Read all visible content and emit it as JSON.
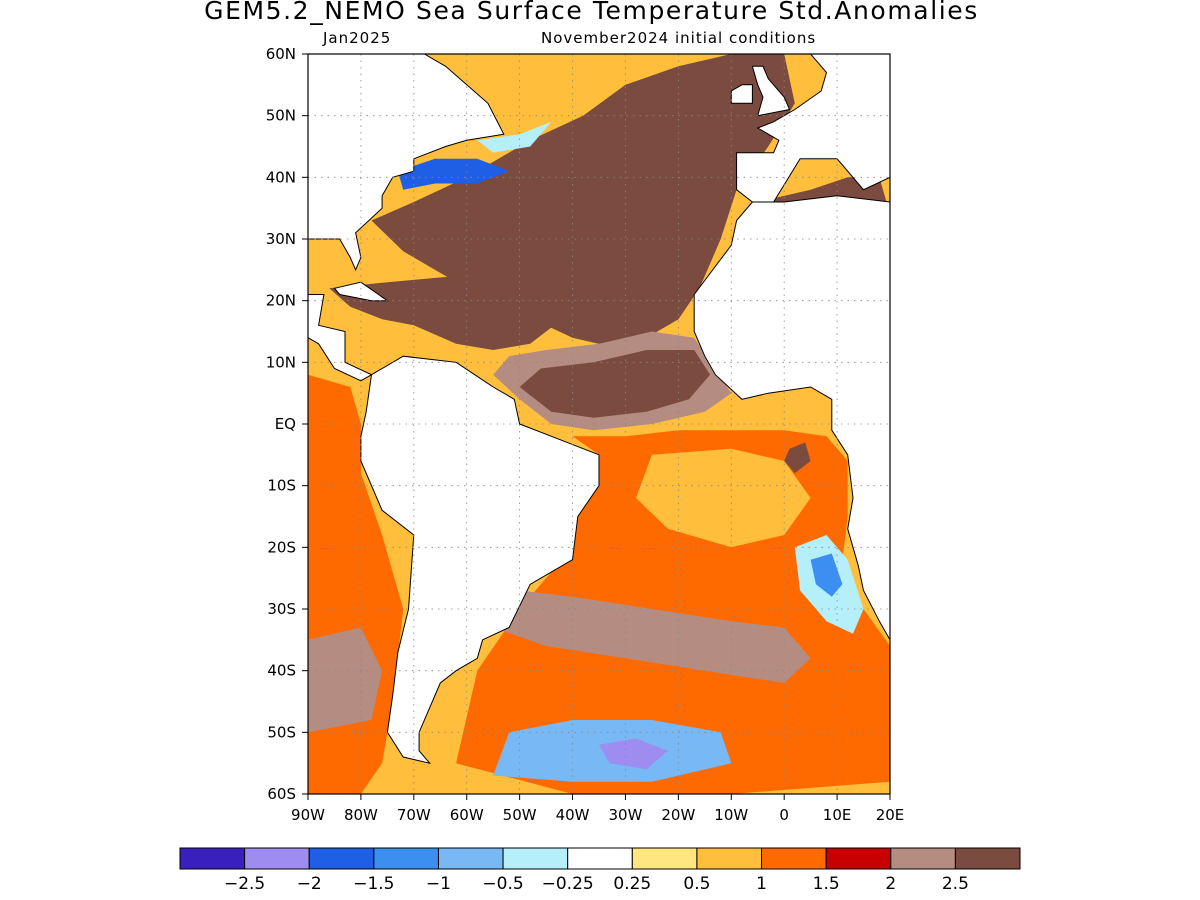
{
  "header": {
    "title": "GEM5.2_NEMO Sea Surface Temperature Std.Anomalies",
    "valid_month": "Jan2025",
    "init_conditions": "November2024 initial conditions"
  },
  "map": {
    "lon_range": [
      -90,
      20
    ],
    "lat_range": [
      -60,
      60
    ],
    "lat_ticks": [
      {
        "lat": 60,
        "label": "60N"
      },
      {
        "lat": 50,
        "label": "50N"
      },
      {
        "lat": 40,
        "label": "40N"
      },
      {
        "lat": 30,
        "label": "30N"
      },
      {
        "lat": 20,
        "label": "20N"
      },
      {
        "lat": 10,
        "label": "10N"
      },
      {
        "lat": 0,
        "label": "EQ"
      },
      {
        "lat": -10,
        "label": "10S"
      },
      {
        "lat": -20,
        "label": "20S"
      },
      {
        "lat": -30,
        "label": "30S"
      },
      {
        "lat": -40,
        "label": "40S"
      },
      {
        "lat": -50,
        "label": "50S"
      },
      {
        "lat": -60,
        "label": "60S"
      }
    ],
    "lon_ticks": [
      {
        "lon": -90,
        "label": "90W"
      },
      {
        "lon": -80,
        "label": "80W"
      },
      {
        "lon": -70,
        "label": "70W"
      },
      {
        "lon": -60,
        "label": "60W"
      },
      {
        "lon": -50,
        "label": "50W"
      },
      {
        "lon": -40,
        "label": "40W"
      },
      {
        "lon": -30,
        "label": "30W"
      },
      {
        "lon": -20,
        "label": "20W"
      },
      {
        "lon": -10,
        "label": "10W"
      },
      {
        "lon": 0,
        "label": "0"
      },
      {
        "lon": 10,
        "label": "10E"
      },
      {
        "lon": 20,
        "label": "20E"
      }
    ],
    "land_color": "#ffffff",
    "grid": "dotted"
  },
  "colorbar": {
    "colors": [
      "#3a1fbf",
      "#9e8cf0",
      "#1f5fe6",
      "#3c8ff0",
      "#78b8f5",
      "#b4effa",
      "#ffffff",
      "#ffe680",
      "#ffbe3c",
      "#ff6a00",
      "#c80000",
      "#b48c82",
      "#7a4b3e"
    ],
    "labels": [
      "-2.5",
      "-2",
      "-1.5",
      "-1",
      "-0.5",
      "-0.25",
      "0.25",
      "0.5",
      "1",
      "1.5",
      "2",
      "2.5"
    ]
  },
  "regions": [
    {
      "name": "north-atlantic-subtropical-warm",
      "level": 12,
      "pts": [
        [
          -78,
          33
        ],
        [
          -70,
          36
        ],
        [
          -60,
          40
        ],
        [
          -48,
          46
        ],
        [
          -38,
          50
        ],
        [
          -30,
          55
        ],
        [
          -20,
          58
        ],
        [
          -10,
          60
        ],
        [
          0,
          60
        ],
        [
          2,
          52
        ],
        [
          -3,
          45
        ],
        [
          -9,
          38
        ],
        [
          -12,
          30
        ],
        [
          -16,
          22
        ],
        [
          -20,
          17
        ],
        [
          -30,
          12
        ],
        [
          -40,
          14
        ],
        [
          -50,
          18
        ],
        [
          -60,
          22
        ],
        [
          -72,
          28
        ]
      ]
    },
    {
      "name": "caribbean-warm",
      "level": 12,
      "pts": [
        [
          -86,
          22
        ],
        [
          -82,
          19
        ],
        [
          -76,
          17
        ],
        [
          -70,
          16
        ],
        [
          -62,
          13
        ],
        [
          -55,
          12
        ],
        [
          -48,
          13
        ],
        [
          -42,
          17
        ],
        [
          -50,
          22
        ],
        [
          -62,
          24
        ],
        [
          -75,
          23
        ]
      ]
    },
    {
      "name": "tropical-atlantic-strong",
      "level": 11,
      "pts": [
        [
          -55,
          8
        ],
        [
          -50,
          4
        ],
        [
          -44,
          0
        ],
        [
          -36,
          -1
        ],
        [
          -25,
          0
        ],
        [
          -15,
          2
        ],
        [
          -10,
          5
        ],
        [
          -14,
          10
        ],
        [
          -17,
          14
        ],
        [
          -25,
          15
        ],
        [
          -35,
          13
        ],
        [
          -45,
          12
        ],
        [
          -52,
          11
        ]
      ]
    },
    {
      "name": "tropical-atlantic-core",
      "level": 12,
      "pts": [
        [
          -50,
          6
        ],
        [
          -44,
          2
        ],
        [
          -36,
          1
        ],
        [
          -26,
          2
        ],
        [
          -18,
          4
        ],
        [
          -14,
          8
        ],
        [
          -17,
          12
        ],
        [
          -26,
          12
        ],
        [
          -36,
          10
        ],
        [
          -46,
          9
        ]
      ]
    },
    {
      "name": "south-atlantic-moderate",
      "level": 9,
      "pts": [
        [
          -40,
          -2
        ],
        [
          -30,
          -2
        ],
        [
          -20,
          -1
        ],
        [
          -10,
          -1
        ],
        [
          0,
          -1
        ],
        [
          8,
          -2
        ],
        [
          12,
          -6
        ],
        [
          12,
          -15
        ],
        [
          11,
          -22
        ],
        [
          15,
          -30
        ],
        [
          20,
          -36
        ],
        [
          20,
          -58
        ],
        [
          -10,
          -60
        ],
        [
          -40,
          -60
        ],
        [
          -62,
          -55
        ],
        [
          -58,
          -40
        ],
        [
          -50,
          -30
        ],
        [
          -42,
          -22
        ],
        [
          -38,
          -12
        ],
        [
          -35,
          -5
        ]
      ]
    },
    {
      "name": "south-atlantic-warm-band",
      "level": 11,
      "pts": [
        [
          -50,
          -27
        ],
        [
          -40,
          -28
        ],
        [
          -25,
          -30
        ],
        [
          -10,
          -32
        ],
        [
          0,
          -33
        ],
        [
          5,
          -38
        ],
        [
          0,
          -42
        ],
        [
          -15,
          -40
        ],
        [
          -30,
          -38
        ],
        [
          -45,
          -36
        ],
        [
          -55,
          -33
        ]
      ]
    },
    {
      "name": "south-atlantic-light",
      "level": 8,
      "pts": [
        [
          -25,
          -5
        ],
        [
          -10,
          -4
        ],
        [
          0,
          -6
        ],
        [
          5,
          -12
        ],
        [
          0,
          -18
        ],
        [
          -10,
          -20
        ],
        [
          -22,
          -17
        ],
        [
          -28,
          -12
        ]
      ]
    },
    {
      "name": "angola-warm-spot",
      "level": 12,
      "pts": [
        [
          1,
          -4
        ],
        [
          4,
          -3
        ],
        [
          5,
          -6
        ],
        [
          2,
          -8
        ],
        [
          0,
          -6
        ]
      ]
    },
    {
      "name": "benguela-cool",
      "level": 5,
      "pts": [
        [
          2,
          -20
        ],
        [
          8,
          -18
        ],
        [
          12,
          -22
        ],
        [
          15,
          -30
        ],
        [
          13,
          -34
        ],
        [
          8,
          -32
        ],
        [
          3,
          -27
        ]
      ]
    },
    {
      "name": "benguela-cold-core",
      "level": 3,
      "pts": [
        [
          5,
          -22
        ],
        [
          9,
          -21
        ],
        [
          11,
          -26
        ],
        [
          9,
          -28
        ],
        [
          6,
          -26
        ]
      ]
    },
    {
      "name": "southern-ocean-cool",
      "level": 4,
      "pts": [
        [
          -52,
          -50
        ],
        [
          -40,
          -48
        ],
        [
          -25,
          -48
        ],
        [
          -12,
          -50
        ],
        [
          -10,
          -55
        ],
        [
          -25,
          -58
        ],
        [
          -40,
          -58
        ],
        [
          -55,
          -57
        ]
      ]
    },
    {
      "name": "southern-ocean-cold-core",
      "level": 1,
      "pts": [
        [
          -35,
          -52
        ],
        [
          -28,
          -51
        ],
        [
          -22,
          -53
        ],
        [
          -26,
          -56
        ],
        [
          -33,
          -55
        ]
      ]
    },
    {
      "name": "eastern-pacific-moderate",
      "level": 9,
      "pts": [
        [
          -90,
          8
        ],
        [
          -82,
          6
        ],
        [
          -80,
          0
        ],
        [
          -80,
          -8
        ],
        [
          -76,
          -18
        ],
        [
          -72,
          -30
        ],
        [
          -74,
          -45
        ],
        [
          -76,
          -55
        ],
        [
          -80,
          -60
        ],
        [
          -90,
          -60
        ]
      ]
    },
    {
      "name": "eastern-pacific-strong",
      "level": 11,
      "pts": [
        [
          -90,
          -35
        ],
        [
          -80,
          -33
        ],
        [
          -76,
          -40
        ],
        [
          -78,
          -48
        ],
        [
          -90,
          -50
        ]
      ]
    },
    {
      "name": "gulf-stream-cold",
      "level": 2,
      "pts": [
        [
          -73,
          41
        ],
        [
          -66,
          43
        ],
        [
          -58,
          43
        ],
        [
          -52,
          41
        ],
        [
          -58,
          39
        ],
        [
          -66,
          39
        ],
        [
          -72,
          38
        ]
      ]
    },
    {
      "name": "labrador-cool",
      "level": 5,
      "pts": [
        [
          -58,
          46
        ],
        [
          -50,
          47
        ],
        [
          -44,
          49
        ],
        [
          -48,
          45
        ],
        [
          -55,
          44
        ]
      ]
    },
    {
      "name": "mediterranean-warm",
      "level": 12,
      "pts": [
        [
          -5,
          36
        ],
        [
          5,
          38
        ],
        [
          12,
          40
        ],
        [
          18,
          40
        ],
        [
          20,
          34
        ],
        [
          10,
          34
        ],
        [
          0,
          35
        ]
      ]
    }
  ],
  "land": [
    {
      "name": "north-america",
      "pts": [
        [
          -90,
          60
        ],
        [
          -68,
          60
        ],
        [
          -64,
          58
        ],
        [
          -56,
          52
        ],
        [
          -53,
          47
        ],
        [
          -60,
          46
        ],
        [
          -64,
          45
        ],
        [
          -70,
          43
        ],
        [
          -70,
          41
        ],
        [
          -74,
          40
        ],
        [
          -76,
          37
        ],
        [
          -76,
          35
        ],
        [
          -81,
          31
        ],
        [
          -80,
          27
        ],
        [
          -81,
          25
        ],
        [
          -82,
          27
        ],
        [
          -84,
          30
        ],
        [
          -88,
          30
        ],
        [
          -90,
          30
        ]
      ]
    },
    {
      "name": "central-america",
      "pts": [
        [
          -90,
          21
        ],
        [
          -87,
          21
        ],
        [
          -88,
          16
        ],
        [
          -83,
          15
        ],
        [
          -83,
          10
        ],
        [
          -78,
          8
        ],
        [
          -80,
          7
        ],
        [
          -85,
          9
        ],
        [
          -88,
          13
        ],
        [
          -90,
          14
        ]
      ]
    },
    {
      "name": "cuba",
      "pts": [
        [
          -85,
          22
        ],
        [
          -80,
          23
        ],
        [
          -75,
          20
        ],
        [
          -78,
          20
        ],
        [
          -84,
          21
        ]
      ]
    },
    {
      "name": "south-america",
      "pts": [
        [
          -78,
          8
        ],
        [
          -72,
          11
        ],
        [
          -62,
          10
        ],
        [
          -55,
          6
        ],
        [
          -51,
          4
        ],
        [
          -50,
          0
        ],
        [
          -44,
          -2
        ],
        [
          -35,
          -5
        ],
        [
          -35,
          -10
        ],
        [
          -39,
          -15
        ],
        [
          -40,
          -22
        ],
        [
          -48,
          -26
        ],
        [
          -52,
          -33
        ],
        [
          -57,
          -35
        ],
        [
          -58,
          -38
        ],
        [
          -62,
          -40
        ],
        [
          -65,
          -42
        ],
        [
          -67,
          -46
        ],
        [
          -69,
          -50
        ],
        [
          -69,
          -53
        ],
        [
          -67,
          -55
        ],
        [
          -72,
          -54
        ],
        [
          -75,
          -50
        ],
        [
          -74,
          -44
        ],
        [
          -73,
          -37
        ],
        [
          -71,
          -30
        ],
        [
          -70,
          -18
        ],
        [
          -76,
          -14
        ],
        [
          -80,
          -6
        ],
        [
          -80,
          -2
        ],
        [
          -79,
          2
        ]
      ]
    },
    {
      "name": "africa",
      "pts": [
        [
          -6,
          36
        ],
        [
          -9,
          33
        ],
        [
          -10,
          29
        ],
        [
          -17,
          21
        ],
        [
          -17,
          15
        ],
        [
          -15,
          11
        ],
        [
          -13,
          8
        ],
        [
          -8,
          4
        ],
        [
          -3,
          5
        ],
        [
          5,
          6
        ],
        [
          9,
          4
        ],
        [
          9,
          -1
        ],
        [
          12,
          -5
        ],
        [
          13,
          -12
        ],
        [
          12,
          -17
        ],
        [
          14,
          -23
        ],
        [
          15,
          -27
        ],
        [
          18,
          -32
        ],
        [
          20,
          -35
        ],
        [
          20,
          36
        ],
        [
          10,
          37
        ],
        [
          0,
          36
        ]
      ]
    },
    {
      "name": "europe",
      "pts": [
        [
          -9,
          44
        ],
        [
          -2,
          44
        ],
        [
          -1,
          46
        ],
        [
          -5,
          48
        ],
        [
          -2,
          49
        ],
        [
          2,
          51
        ],
        [
          7,
          54
        ],
        [
          8,
          57
        ],
        [
          5,
          60
        ],
        [
          20,
          60
        ],
        [
          20,
          40
        ],
        [
          15,
          38
        ],
        [
          10,
          43
        ],
        [
          3,
          43
        ],
        [
          -2,
          36
        ],
        [
          -6,
          36
        ],
        [
          -9,
          38
        ],
        [
          -9,
          42
        ]
      ]
    },
    {
      "name": "great-britain",
      "pts": [
        [
          -5,
          50
        ],
        [
          1,
          51
        ],
        [
          0,
          53
        ],
        [
          -3,
          56
        ],
        [
          -4,
          58
        ],
        [
          -6,
          58
        ],
        [
          -5,
          55
        ],
        [
          -4,
          53
        ]
      ]
    },
    {
      "name": "ireland",
      "pts": [
        [
          -10,
          52
        ],
        [
          -6,
          52
        ],
        [
          -6,
          55
        ],
        [
          -8,
          55
        ],
        [
          -10,
          54
        ]
      ]
    }
  ]
}
